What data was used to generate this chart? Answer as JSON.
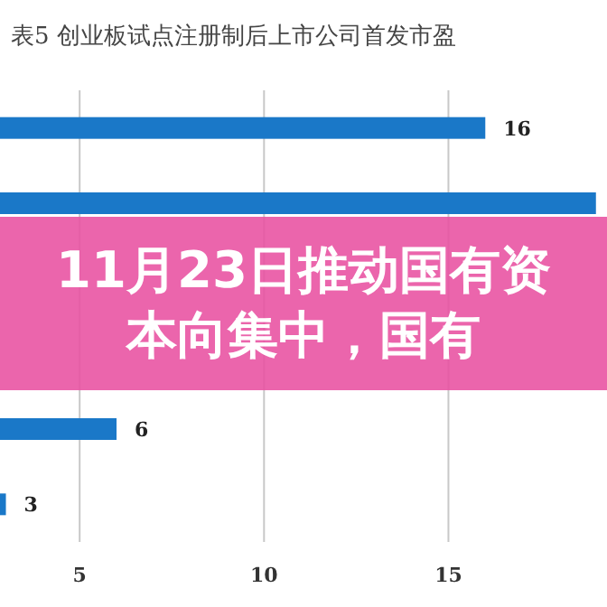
{
  "chart_data": {
    "type": "bar",
    "orientation": "horizontal",
    "title": "表5 创业板试点注册制后上市公司首发市盈",
    "categories": [
      null,
      null,
      null,
      null,
      null,
      null
    ],
    "values": [
      16,
      19,
      null,
      null,
      6,
      3
    ],
    "value_labels": [
      "16",
      null,
      null,
      null,
      "6",
      "3"
    ],
    "color": "#1a78c8",
    "xlim": [
      2.84,
      19.3
    ],
    "xticks": [
      5,
      10,
      15
    ],
    "grid": "x",
    "tick_labels": "x",
    "annotations": [
      "11月23日推动国有资本向集中，国有"
    ]
  }
}
